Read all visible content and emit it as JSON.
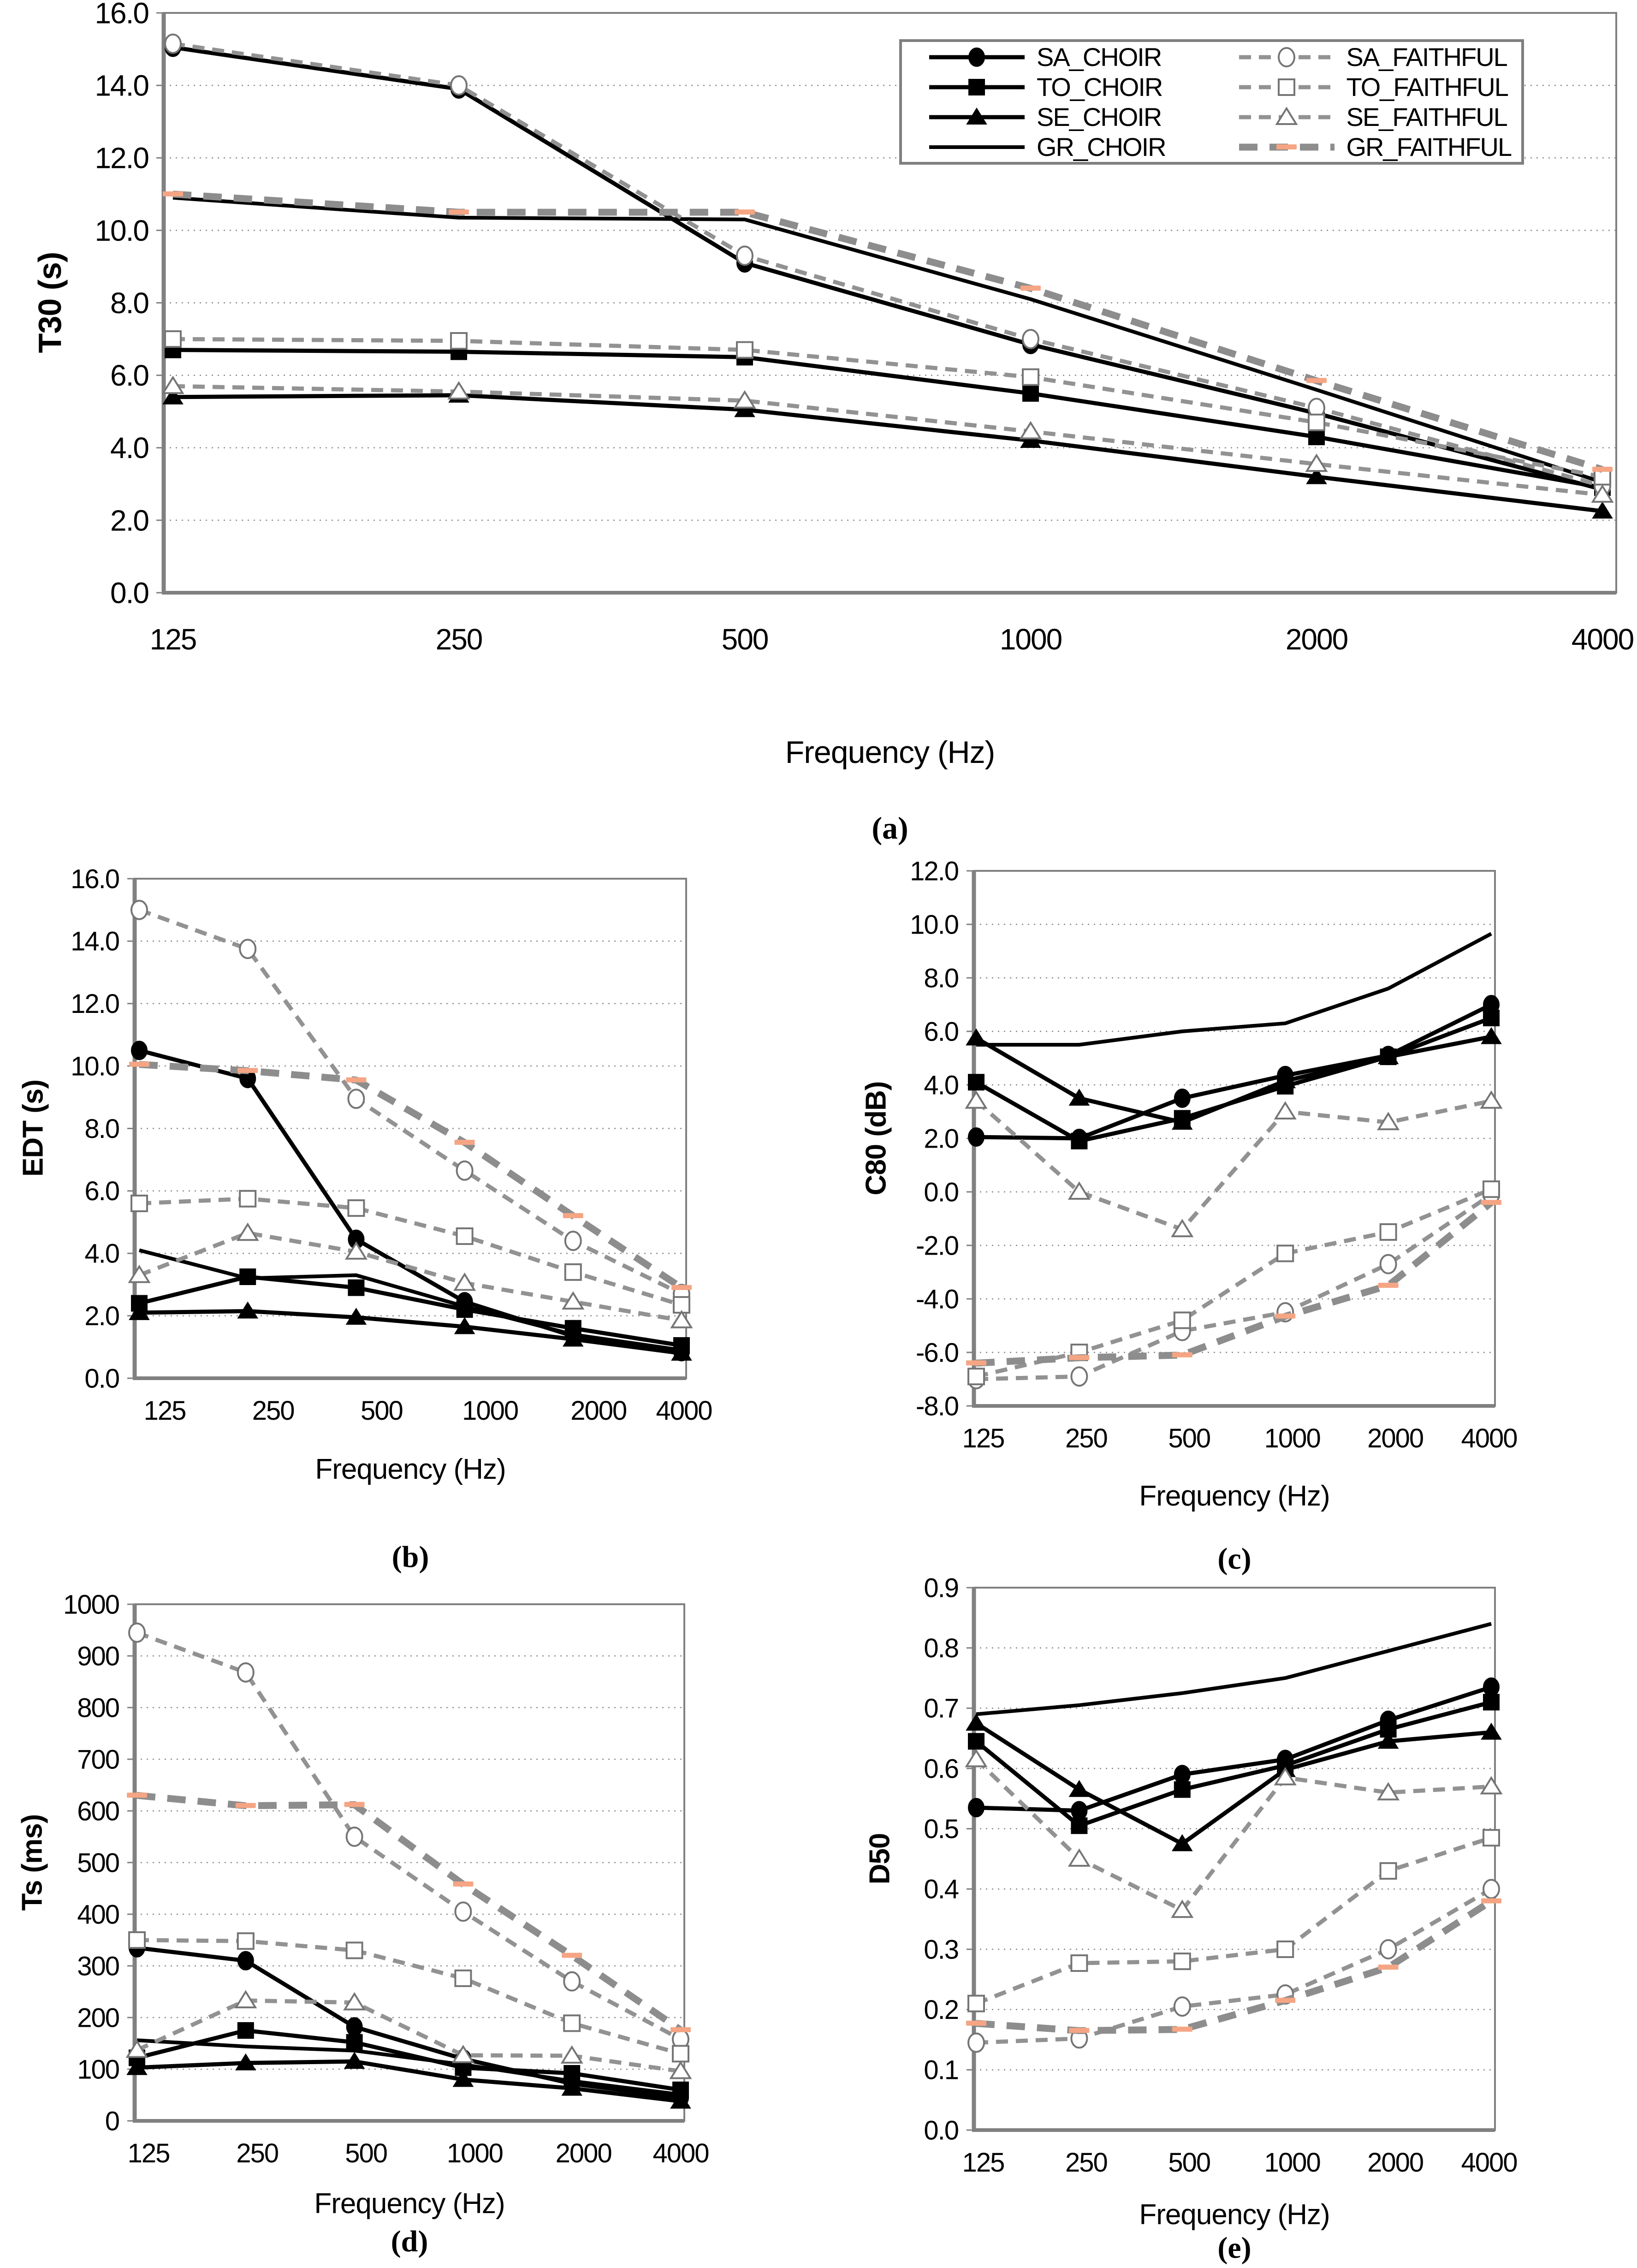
{
  "figure_background": "#ffffff",
  "styles": {
    "choir_line": "#000000",
    "faithful_line": "#929292",
    "gr_faithful_line": "#8d8d8d",
    "marker_open_stroke": "#757575",
    "marker_open_fill": "#ffffff",
    "salmon_marker": "#F5A584",
    "grid_color": "#8c8c8c",
    "border_color": "#808080",
    "text_color": "#000000"
  },
  "legend": {
    "items": [
      {
        "label": "SA_CHOIR",
        "series": "SA_CHOIR"
      },
      {
        "label": "SA_FAITHFUL",
        "series": "SA_FAITHFUL"
      },
      {
        "label": "TO_CHOIR",
        "series": "TO_CHOIR"
      },
      {
        "label": "TO_FAITHFUL",
        "series": "TO_FAITHFUL"
      },
      {
        "label": "SE_CHOIR",
        "series": "SE_CHOIR"
      },
      {
        "label": "SE_FAITHFUL",
        "series": "SE_FAITHFUL"
      },
      {
        "label": "GR_CHOIR",
        "series": "GR_CHOIR"
      },
      {
        "label": "GR_FAITHFUL",
        "series": "GR_FAITHFUL"
      }
    ]
  },
  "chart_data": [
    {
      "id": "a",
      "type": "line",
      "caption": "(a)",
      "xlabel": "Frequency (Hz)",
      "ylabel": "T30  (s)",
      "x_categories": [
        "125",
        "250",
        "500",
        "1000",
        "2000",
        "4000"
      ],
      "ylim": [
        0,
        16
      ],
      "ytick_step": 2,
      "ytick_labels": [
        "0.0",
        "2.0",
        "4.0",
        "6.0",
        "8.0",
        "10.0",
        "12.0",
        "14.0",
        "16.0"
      ],
      "grid": true,
      "legend_position": "top-right",
      "series": [
        {
          "name": "SA_CHOIR",
          "variant": "choir",
          "marker": "circle",
          "values": [
            15.05,
            13.9,
            9.1,
            6.85,
            4.95,
            2.85
          ]
        },
        {
          "name": "TO_CHOIR",
          "variant": "choir",
          "marker": "square",
          "values": [
            6.7,
            6.65,
            6.5,
            5.5,
            4.3,
            2.9
          ]
        },
        {
          "name": "SE_CHOIR",
          "variant": "choir",
          "marker": "triangle",
          "values": [
            5.4,
            5.45,
            5.05,
            4.2,
            3.2,
            2.25
          ]
        },
        {
          "name": "GR_CHOIR",
          "variant": "gr_choir",
          "marker": "none",
          "values": [
            10.9,
            10.35,
            10.3,
            8.1,
            5.6,
            3.05
          ]
        },
        {
          "name": "SA_FAITHFUL",
          "variant": "faithful",
          "marker": "circle",
          "values": [
            15.15,
            14.0,
            9.3,
            7.0,
            5.1,
            2.95
          ]
        },
        {
          "name": "TO_FAITHFUL",
          "variant": "faithful",
          "marker": "square",
          "values": [
            7.0,
            6.95,
            6.7,
            5.95,
            4.7,
            3.2
          ]
        },
        {
          "name": "SE_FAITHFUL",
          "variant": "faithful",
          "marker": "triangle",
          "values": [
            5.7,
            5.55,
            5.3,
            4.45,
            3.55,
            2.7
          ]
        },
        {
          "name": "GR_FAITHFUL",
          "variant": "gr_faithful",
          "marker": "dash",
          "values": [
            11.0,
            10.5,
            10.5,
            8.4,
            5.85,
            3.4
          ]
        }
      ]
    },
    {
      "id": "b",
      "type": "line",
      "caption": "(b)",
      "xlabel": "Frequency (Hz)",
      "ylabel": "EDT  (s)",
      "x_categories": [
        "125",
        "250",
        "500",
        "1000",
        "2000",
        "4000"
      ],
      "ylim": [
        0,
        16
      ],
      "ytick_step": 2,
      "ytick_labels": [
        "0.0",
        "2.0",
        "4.0",
        "6.0",
        "8.0",
        "10.0",
        "12.0",
        "14.0",
        "16.0"
      ],
      "grid": true,
      "series": [
        {
          "name": "SA_CHOIR",
          "variant": "choir",
          "marker": "circle",
          "values": [
            10.5,
            9.6,
            4.45,
            2.45,
            1.35,
            0.85
          ]
        },
        {
          "name": "TO_CHOIR",
          "variant": "choir",
          "marker": "square",
          "values": [
            2.4,
            3.25,
            2.9,
            2.2,
            1.6,
            1.05
          ]
        },
        {
          "name": "SE_CHOIR",
          "variant": "choir",
          "marker": "triangle",
          "values": [
            2.1,
            2.15,
            1.95,
            1.65,
            1.25,
            0.8
          ]
        },
        {
          "name": "GR_CHOIR",
          "variant": "gr_choir",
          "marker": "none",
          "values": [
            4.1,
            3.2,
            3.3,
            2.3,
            1.4,
            0.9
          ]
        },
        {
          "name": "SA_FAITHFUL",
          "variant": "faithful",
          "marker": "circle",
          "values": [
            15.0,
            13.75,
            8.95,
            6.65,
            4.4,
            2.7
          ]
        },
        {
          "name": "TO_FAITHFUL",
          "variant": "faithful",
          "marker": "square",
          "values": [
            5.6,
            5.75,
            5.45,
            4.55,
            3.4,
            2.35
          ]
        },
        {
          "name": "SE_FAITHFUL",
          "variant": "faithful",
          "marker": "triangle",
          "values": [
            3.3,
            4.65,
            4.05,
            3.05,
            2.45,
            1.85
          ]
        },
        {
          "name": "GR_FAITHFUL",
          "variant": "gr_faithful",
          "marker": "dash",
          "values": [
            10.05,
            9.85,
            9.55,
            7.55,
            5.2,
            2.9
          ]
        }
      ]
    },
    {
      "id": "c",
      "type": "line",
      "caption": "(c)",
      "xlabel": "Frequency (Hz)",
      "ylabel": "C80  (dB)",
      "x_categories": [
        "125",
        "250",
        "500",
        "1000",
        "2000",
        "4000"
      ],
      "ylim": [
        -8,
        12
      ],
      "ytick_step": 2,
      "ytick_labels": [
        "-8.0",
        "-6.0",
        "-4.0",
        "-2.0",
        "0.0",
        "2.0",
        "4.0",
        "6.0",
        "8.0",
        "10.0",
        "12.0"
      ],
      "grid": true,
      "series": [
        {
          "name": "SA_CHOIR",
          "variant": "choir",
          "marker": "circle",
          "values": [
            2.05,
            2.0,
            3.5,
            4.35,
            5.1,
            7.0
          ]
        },
        {
          "name": "TO_CHOIR",
          "variant": "choir",
          "marker": "square",
          "values": [
            4.1,
            1.9,
            2.75,
            3.95,
            5.05,
            6.5
          ]
        },
        {
          "name": "SE_CHOIR",
          "variant": "choir",
          "marker": "triangle",
          "values": [
            5.75,
            3.5,
            2.6,
            4.15,
            5.05,
            5.8
          ]
        },
        {
          "name": "GR_CHOIR",
          "variant": "gr_choir",
          "marker": "none",
          "values": [
            5.5,
            5.5,
            6.0,
            6.3,
            7.6,
            9.65
          ]
        },
        {
          "name": "SA_FAITHFUL",
          "variant": "faithful",
          "marker": "circle",
          "values": [
            -7.0,
            -6.9,
            -5.2,
            -4.5,
            -2.7,
            -0.1
          ]
        },
        {
          "name": "TO_FAITHFUL",
          "variant": "faithful",
          "marker": "square",
          "values": [
            -6.9,
            -6.0,
            -4.8,
            -2.3,
            -1.5,
            0.1
          ]
        },
        {
          "name": "SE_FAITHFUL",
          "variant": "faithful",
          "marker": "triangle",
          "values": [
            3.4,
            0.0,
            -1.4,
            3.0,
            2.6,
            3.4
          ]
        },
        {
          "name": "GR_FAITHFUL",
          "variant": "gr_faithful",
          "marker": "dash",
          "values": [
            -6.4,
            -6.2,
            -6.1,
            -4.65,
            -3.5,
            -0.4
          ]
        }
      ]
    },
    {
      "id": "d",
      "type": "line",
      "caption": "(d)",
      "xlabel": "Frequency (Hz)",
      "ylabel": "Ts  (ms)",
      "x_categories": [
        "125",
        "250",
        "500",
        "1000",
        "2000",
        "4000"
      ],
      "ylim": [
        0,
        1000
      ],
      "ytick_step": 100,
      "ytick_labels": [
        "0",
        "100",
        "200",
        "300",
        "400",
        "500",
        "600",
        "700",
        "800",
        "900",
        "1000"
      ],
      "grid": true,
      "series": [
        {
          "name": "SA_CHOIR",
          "variant": "choir",
          "marker": "circle",
          "values": [
            335,
            310,
            182,
            120,
            72,
            45
          ]
        },
        {
          "name": "TO_CHOIR",
          "variant": "choir",
          "marker": "square",
          "values": [
            122,
            175,
            152,
            103,
            92,
            60
          ]
        },
        {
          "name": "SE_CHOIR",
          "variant": "choir",
          "marker": "triangle",
          "values": [
            103,
            112,
            115,
            80,
            63,
            38
          ]
        },
        {
          "name": "GR_CHOIR",
          "variant": "gr_choir",
          "marker": "none",
          "values": [
            156,
            144,
            136,
            109,
            77,
            51
          ]
        },
        {
          "name": "SA_FAITHFUL",
          "variant": "faithful",
          "marker": "circle",
          "values": [
            945,
            868,
            550,
            405,
            270,
            158
          ]
        },
        {
          "name": "TO_FAITHFUL",
          "variant": "faithful",
          "marker": "square",
          "values": [
            350,
            348,
            330,
            276,
            189,
            130
          ]
        },
        {
          "name": "SE_FAITHFUL",
          "variant": "faithful",
          "marker": "triangle",
          "values": [
            137,
            233,
            229,
            127,
            126,
            96
          ]
        },
        {
          "name": "GR_FAITHFUL",
          "variant": "gr_faithful",
          "marker": "dash",
          "values": [
            630,
            610,
            612,
            458,
            320,
            176
          ]
        }
      ]
    },
    {
      "id": "e",
      "type": "line",
      "caption": "(e)",
      "xlabel": "Frequency (Hz)",
      "ylabel": "D50",
      "x_categories": [
        "125",
        "250",
        "500",
        "1000",
        "2000",
        "4000"
      ],
      "ylim": [
        0,
        0.9
      ],
      "ytick_step": 0.1,
      "ytick_labels": [
        "0.0",
        "0.1",
        "0.2",
        "0.3",
        "0.4",
        "0.5",
        "0.6",
        "0.7",
        "0.8",
        "0.9"
      ],
      "grid": true,
      "series": [
        {
          "name": "SA_CHOIR",
          "variant": "choir",
          "marker": "circle",
          "values": [
            0.535,
            0.53,
            0.59,
            0.615,
            0.68,
            0.735
          ]
        },
        {
          "name": "TO_CHOIR",
          "variant": "choir",
          "marker": "square",
          "values": [
            0.645,
            0.505,
            0.565,
            0.605,
            0.665,
            0.71
          ]
        },
        {
          "name": "SE_CHOIR",
          "variant": "choir",
          "marker": "triangle",
          "values": [
            0.675,
            0.565,
            0.475,
            0.598,
            0.645,
            0.66
          ]
        },
        {
          "name": "GR_CHOIR",
          "variant": "gr_choir",
          "marker": "none",
          "values": [
            0.69,
            0.705,
            0.725,
            0.75,
            0.795,
            0.84
          ]
        },
        {
          "name": "SA_FAITHFUL",
          "variant": "faithful",
          "marker": "circle",
          "values": [
            0.145,
            0.152,
            0.205,
            0.225,
            0.3,
            0.4
          ]
        },
        {
          "name": "TO_FAITHFUL",
          "variant": "faithful",
          "marker": "square",
          "values": [
            0.21,
            0.277,
            0.28,
            0.3,
            0.43,
            0.485
          ]
        },
        {
          "name": "SE_FAITHFUL",
          "variant": "faithful",
          "marker": "triangle",
          "values": [
            0.615,
            0.45,
            0.365,
            0.585,
            0.56,
            0.57
          ]
        },
        {
          "name": "GR_FAITHFUL",
          "variant": "gr_faithful",
          "marker": "dash",
          "values": [
            0.177,
            0.165,
            0.167,
            0.215,
            0.27,
            0.38
          ]
        }
      ]
    }
  ]
}
